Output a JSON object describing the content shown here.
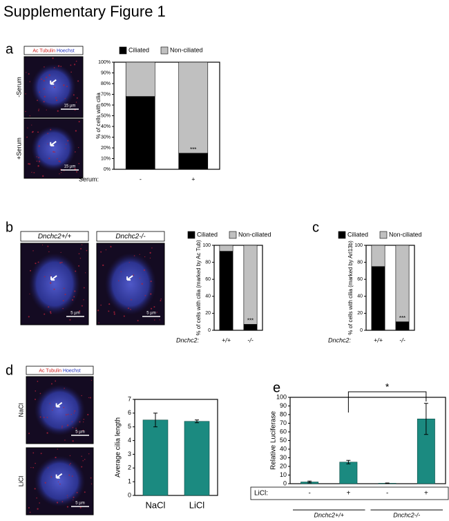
{
  "title": "Supplementary Figure 1",
  "micrographs": [
    {
      "stain": [
        "Ac Tubulin",
        "Hoechst"
      ],
      "images": [
        {
          "label": "-Serum",
          "scale": "15 µm"
        },
        {
          "label": "+Serum",
          "scale": "15 µm"
        }
      ]
    },
    {
      "images": [
        {
          "label": "Dnchc2+/+",
          "scale": "5 µm"
        },
        {
          "label": "Dnchc2-/-",
          "scale": "5 µm"
        }
      ]
    },
    {
      "stain": [
        "Ac Tubulin",
        "Hoechst"
      ],
      "images": [
        {
          "label": "NaCl",
          "scale": "5 µm"
        },
        {
          "label": "LiCl",
          "scale": "5 µm"
        }
      ]
    }
  ],
  "chart_data": [
    {
      "type": "stacked_bar",
      "panel": "a",
      "ylabel": "% of cells with cilia",
      "xlabel": "Serum:",
      "categories": [
        "-",
        "+"
      ],
      "series": [
        {
          "name": "Ciliated",
          "color": "#000000",
          "values": [
            68,
            15
          ]
        },
        {
          "name": "Non-ciliated",
          "color": "#c0c0c0",
          "values": [
            32,
            85
          ]
        }
      ],
      "ylim": [
        0,
        100
      ],
      "yticks": [
        {
          "value": 0,
          "label": "0%"
        },
        {
          "value": 10,
          "label": "10%"
        },
        {
          "value": 20,
          "label": "20%"
        },
        {
          "value": 30,
          "label": "30%"
        },
        {
          "value": 40,
          "label": "40%"
        },
        {
          "value": 50,
          "label": "50%"
        },
        {
          "value": 60,
          "label": "60%"
        },
        {
          "value": 70,
          "label": "70%"
        },
        {
          "value": 80,
          "label": "80%"
        },
        {
          "value": 90,
          "label": "90%"
        },
        {
          "value": 100,
          "label": "100%"
        }
      ],
      "annotation": "***"
    },
    {
      "type": "stacked_bar",
      "panel": "b",
      "ylabel": "% of cells with cilia (marked by Ac Tub)",
      "xlabel": "Dnchc2:",
      "categories": [
        "+/+",
        "-/-"
      ],
      "series": [
        {
          "name": "Ciliated",
          "color": "#000000",
          "values": [
            93,
            7
          ]
        },
        {
          "name": "Non-ciliated",
          "color": "#c0c0c0",
          "values": [
            7,
            93
          ]
        }
      ],
      "ylim": [
        0,
        100
      ],
      "yticks": [
        0,
        20,
        40,
        60,
        80,
        100
      ],
      "annotation": "***"
    },
    {
      "type": "stacked_bar",
      "panel": "c",
      "ylabel": "% of cells with cilia (marked by Arl13b)",
      "xlabel": "Dnchc2:",
      "categories": [
        "+/+",
        "-/-"
      ],
      "series": [
        {
          "name": "Ciliated",
          "color": "#000000",
          "values": [
            75,
            10
          ]
        },
        {
          "name": "Non-ciliated",
          "color": "#c0c0c0",
          "values": [
            25,
            90
          ]
        }
      ],
      "ylim": [
        0,
        100
      ],
      "yticks": [
        0,
        20,
        40,
        60,
        80,
        100
      ],
      "annotation": "***"
    },
    {
      "type": "bar",
      "panel": "d",
      "ylabel": "Average cilia length",
      "categories": [
        "NaCl",
        "LiCl"
      ],
      "values": [
        5.5,
        5.4
      ],
      "errors": [
        0.5,
        0.1
      ],
      "color": "#1b8a80",
      "ylim": [
        0,
        7
      ],
      "yticks": [
        0,
        1,
        2,
        3,
        4,
        5,
        6,
        7
      ]
    },
    {
      "type": "bar",
      "panel": "e",
      "ylabel": "Relative Luciferase",
      "xlabel": "LiCl:",
      "categories": [
        "-",
        "+",
        "-",
        "+"
      ],
      "groups": [
        "Dnchc2+/+",
        "Dnchc2-/-"
      ],
      "values": [
        2,
        25,
        0.5,
        75
      ],
      "errors": [
        1,
        2,
        0.3,
        18
      ],
      "color": "#1b8a80",
      "ylim": [
        0,
        100
      ],
      "yticks": [
        0,
        10,
        20,
        30,
        40,
        50,
        60,
        70,
        80,
        90,
        100
      ],
      "annotation": "*"
    }
  ]
}
